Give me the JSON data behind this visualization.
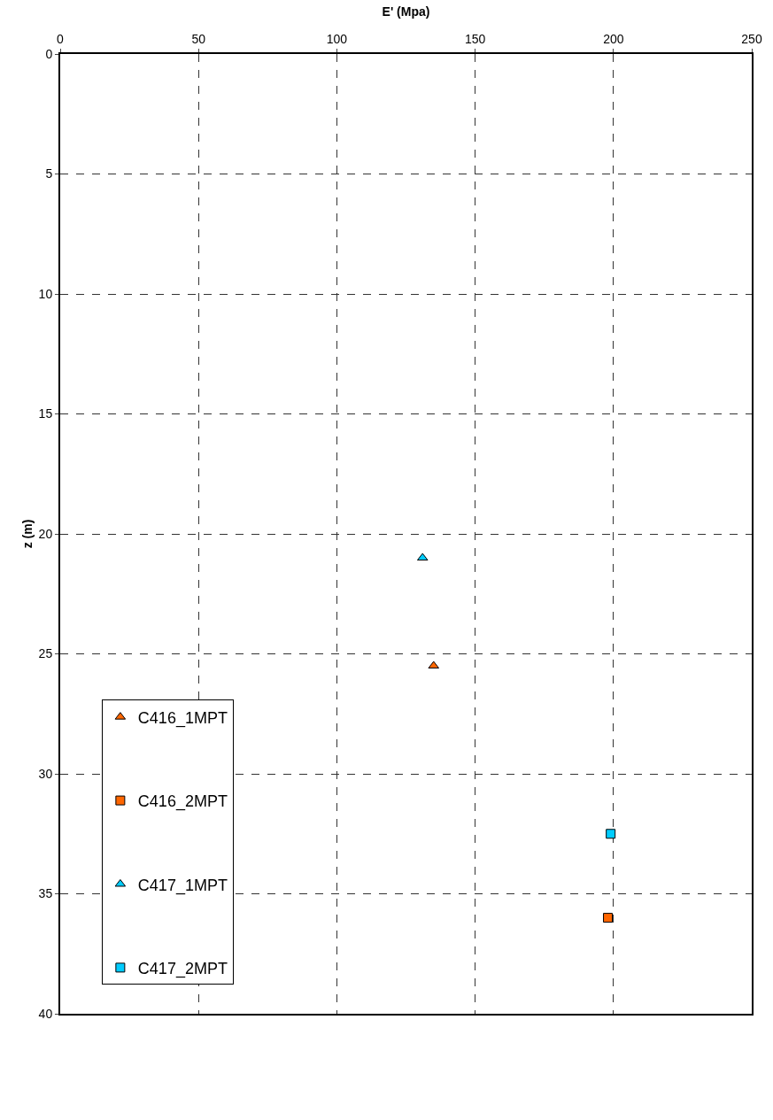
{
  "chart_data": {
    "type": "scatter",
    "xlabel": "E' (Mpa)",
    "ylabel": "z (m)",
    "xlim": [
      0,
      250
    ],
    "xticks": [
      0,
      50,
      100,
      150,
      200,
      250
    ],
    "ylim": [
      40,
      0
    ],
    "yticks": [
      0,
      5,
      10,
      15,
      20,
      25,
      30,
      35,
      40
    ],
    "grid": true,
    "legend": "bottom left",
    "series": [
      {
        "name": "C416_1MPT",
        "color": "#ff6600",
        "marker": "triangle",
        "x": [
          135
        ],
        "values": [
          25.5
        ]
      },
      {
        "name": "C416_2MPT",
        "color": "#ff6600",
        "marker": "square",
        "x": [
          198
        ],
        "values": [
          36
        ]
      },
      {
        "name": "C417_1MPT",
        "color": "#00ccff",
        "marker": "triangle",
        "x": [
          131
        ],
        "values": [
          21
        ]
      },
      {
        "name": "C417_2MPT",
        "color": "#00ccff",
        "marker": "square",
        "x": [
          199
        ],
        "values": [
          32.5
        ]
      }
    ]
  }
}
